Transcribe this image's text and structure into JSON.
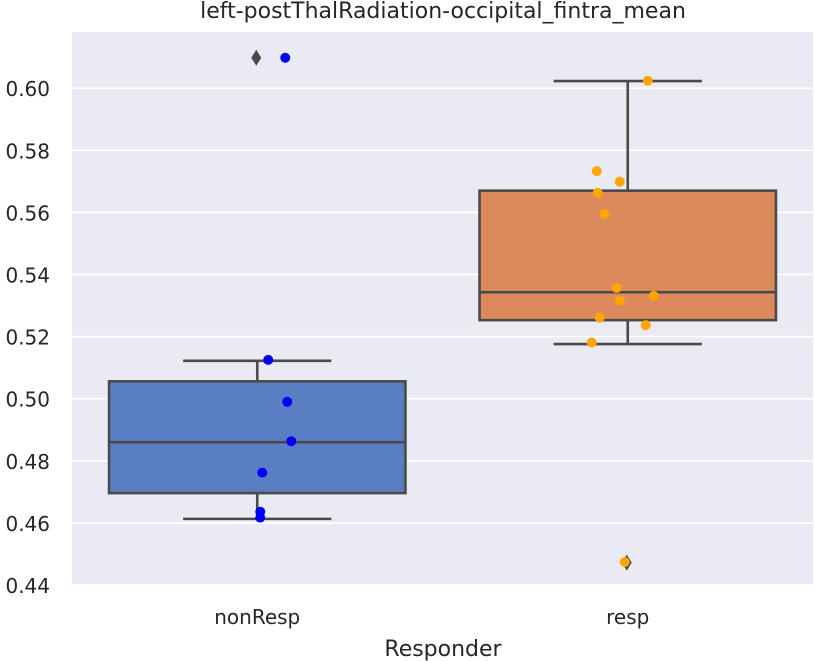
{
  "chart_data": {
    "type": "box",
    "title": "left-postThalRadiation-occipital_fintra_mean",
    "xlabel": "Responder",
    "ylabel": "",
    "ylim": [
      0.44,
      0.615
    ],
    "yticks": [
      0.44,
      0.46,
      0.48,
      0.5,
      0.52,
      0.54,
      0.56,
      0.58,
      0.6
    ],
    "ytick_labels": [
      "0.44",
      "0.46",
      "0.48",
      "0.50",
      "0.52",
      "0.54",
      "0.56",
      "0.58",
      "0.60"
    ],
    "grid": true,
    "categories": [
      "nonResp",
      "resp"
    ],
    "boxes": [
      {
        "name": "nonResp",
        "color": "#5a7ec3",
        "q1": 0.4696,
        "median": 0.486,
        "q3": 0.5056,
        "whisker_low": 0.4613,
        "whisker_high": 0.5122,
        "outliers": [
          0.6098
        ]
      },
      {
        "name": "resp",
        "color": "#dc8a5b",
        "q1": 0.5253,
        "median": 0.5343,
        "q3": 0.567,
        "whisker_low": 0.5176,
        "whisker_high": 0.6023,
        "outliers": [
          0.4472
        ]
      }
    ],
    "points": [
      {
        "name": "nonResp",
        "color": "#0000ff",
        "values": [
          0.6098,
          0.5125,
          0.499,
          0.4863,
          0.4762,
          0.4636,
          0.4617
        ]
      },
      {
        "name": "resp",
        "color": "#ffa500",
        "values": [
          0.6024,
          0.5733,
          0.5699,
          0.5663,
          0.5595,
          0.5357,
          0.5331,
          0.5316,
          0.5261,
          0.5237,
          0.5181,
          0.4474
        ]
      }
    ]
  }
}
